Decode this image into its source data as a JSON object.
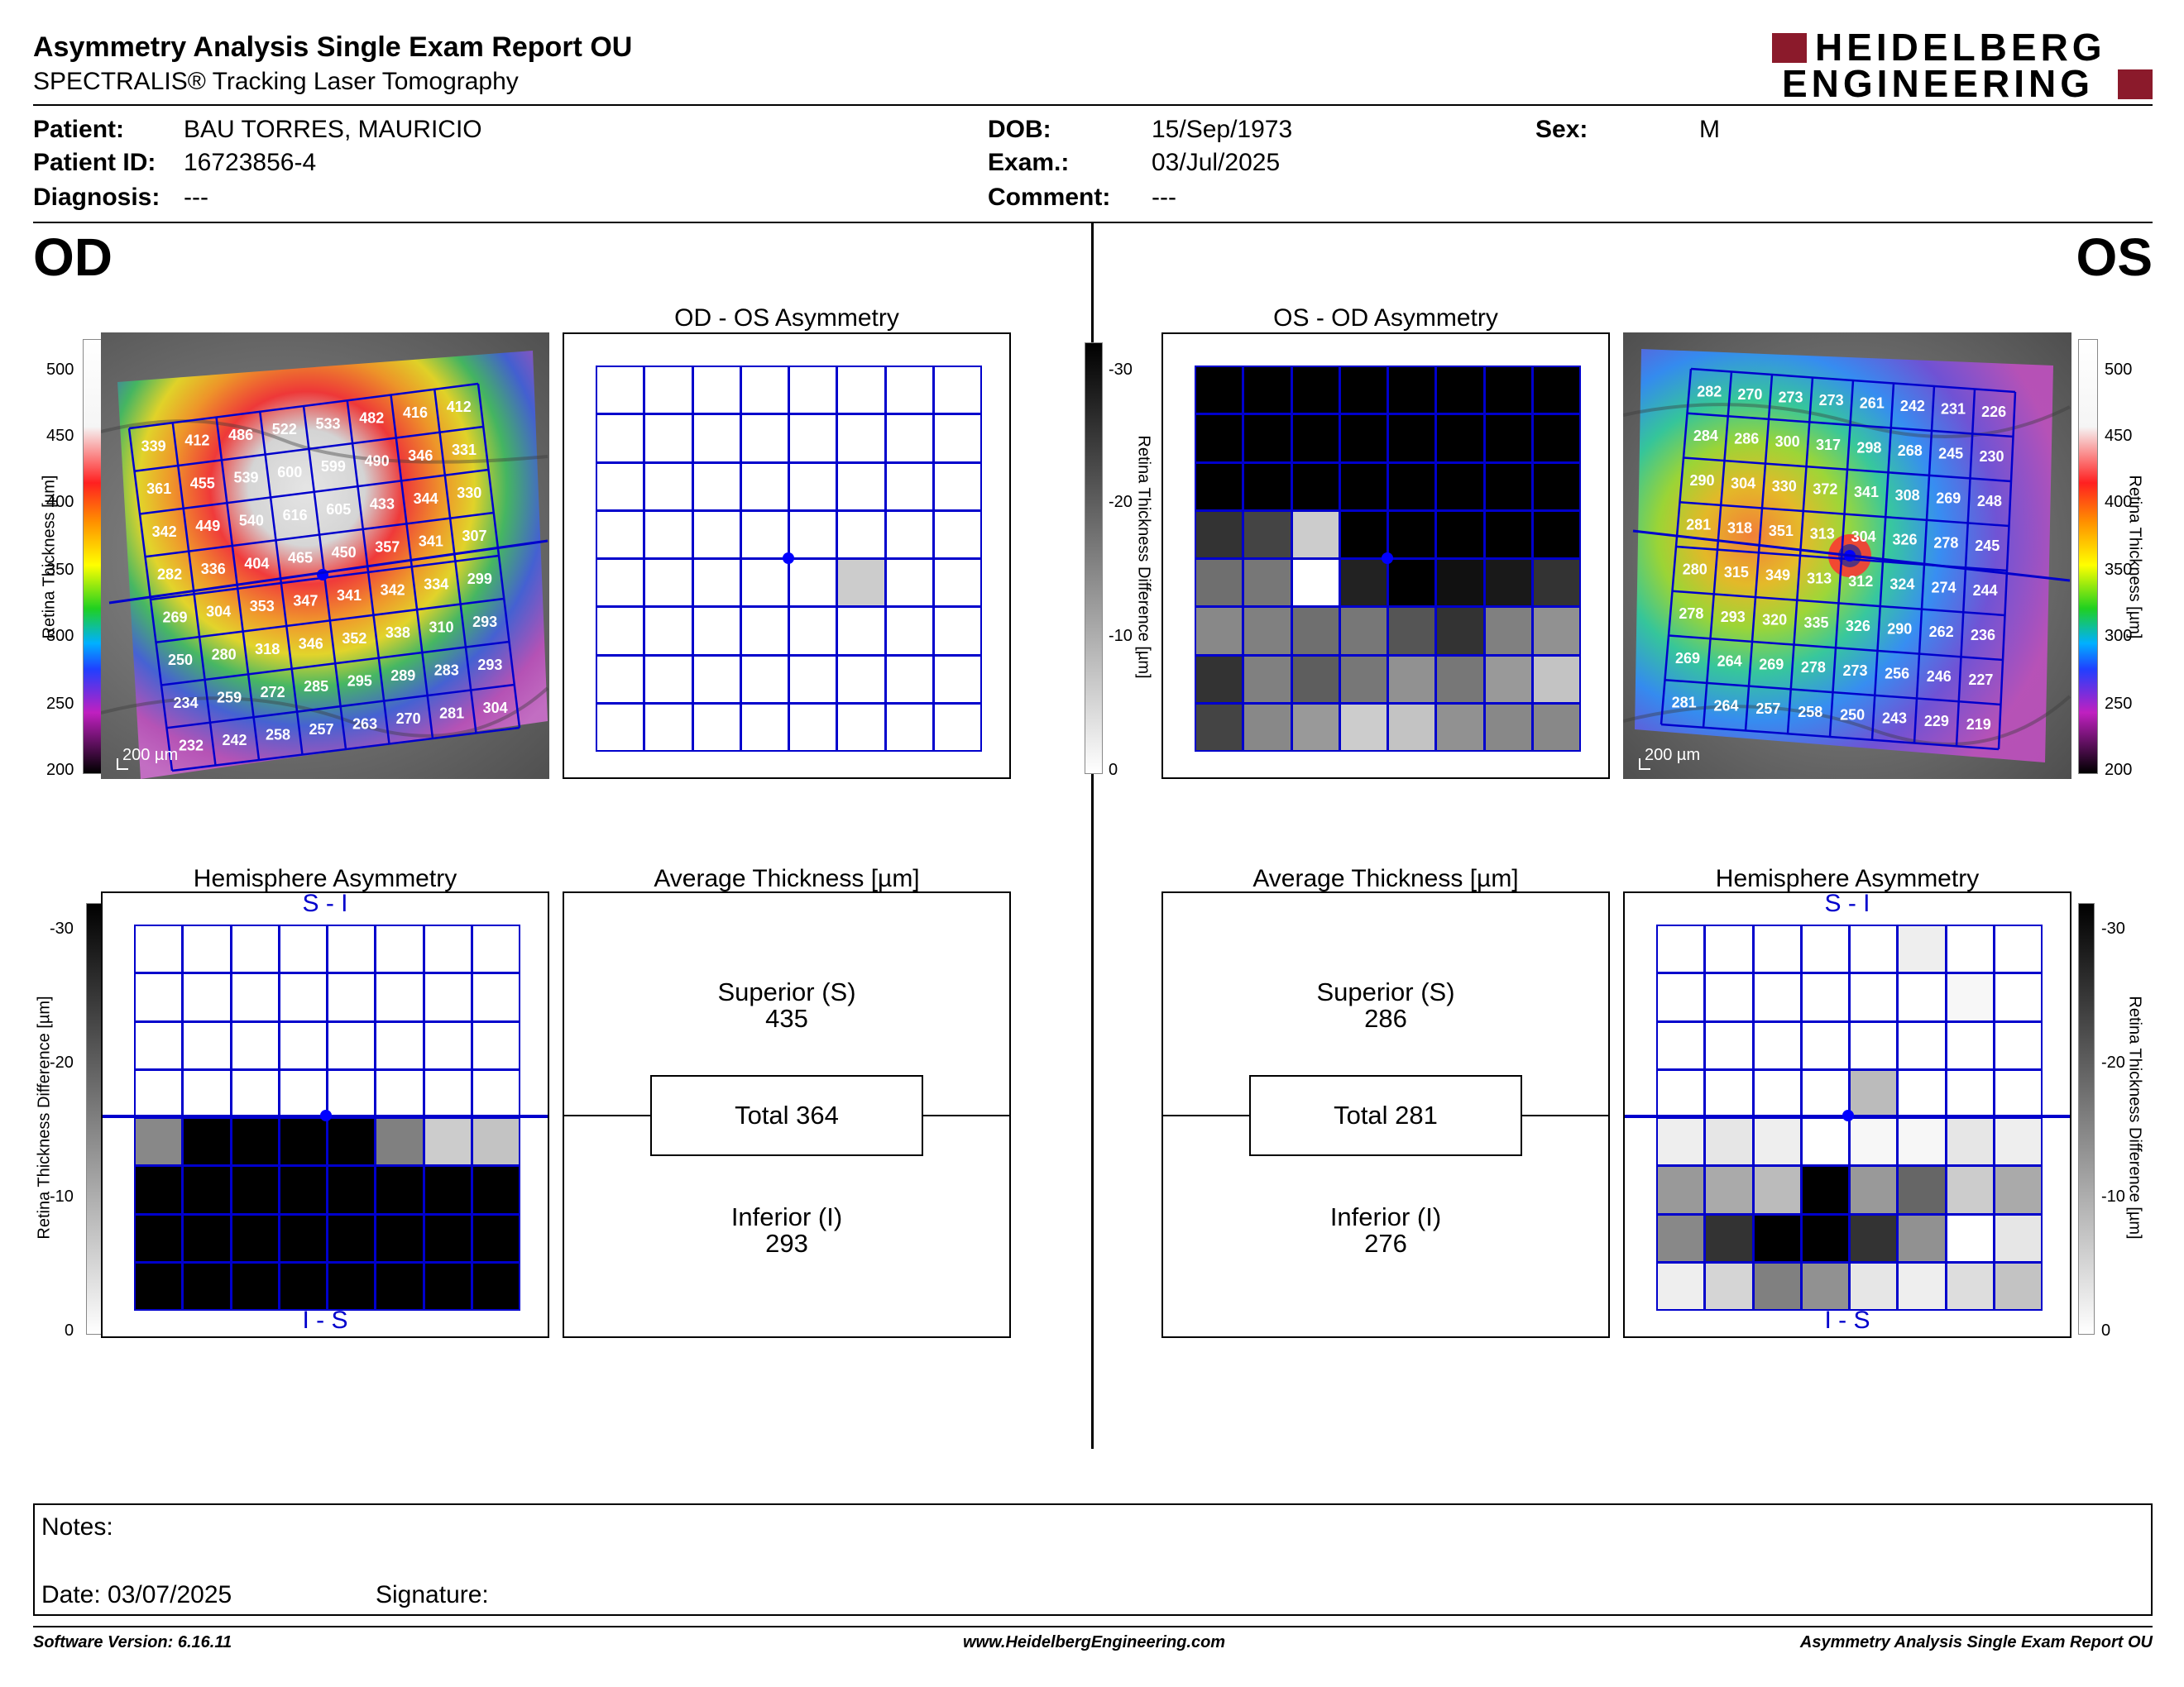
{
  "header": {
    "title": "Asymmetry Analysis Single Exam Report OU",
    "subtitle": "SPECTRALIS® Tracking Laser Tomography",
    "logo_line1": "HEIDELBERG",
    "logo_line2": "ENGINEERING"
  },
  "patient": {
    "patient_label": "Patient:",
    "patient_value": "BAU TORRES, MAURICIO",
    "patient_id_label": "Patient ID:",
    "patient_id_value": "16723856-4",
    "diagnosis_label": "Diagnosis:",
    "diagnosis_value": "---",
    "dob_label": "DOB:",
    "dob_value": "15/Sep/1973",
    "exam_label": "Exam.:",
    "exam_value": "03/Jul/2025",
    "comment_label": "Comment:",
    "comment_value": "---",
    "sex_label": "Sex:",
    "sex_value": "M"
  },
  "eyes": {
    "left": "OD",
    "right": "OS"
  },
  "titles": {
    "od_os_asym": "OD - OS Asymmetry",
    "os_od_asym": "OS - OD Asymmetry",
    "hemi": "Hemisphere Asymmetry",
    "avg": "Average Thickness [µm]",
    "s_i": "S - I",
    "i_s": "I - S"
  },
  "scales": {
    "thickness_ticks": [
      "500",
      "450",
      "400",
      "350",
      "300",
      "250",
      "200"
    ],
    "thickness_label": "Retina Thickness [µm]",
    "diff_ticks": [
      "-30",
      "-20",
      "-10",
      "0"
    ],
    "diff_label": "Retina Thickness Difference [µm]",
    "scale_bar": "200 µm"
  },
  "od": {
    "thickness": [
      [
        339,
        412,
        486,
        522,
        533,
        482,
        416,
        412
      ],
      [
        361,
        455,
        539,
        600,
        599,
        490,
        346,
        331
      ],
      [
        342,
        449,
        540,
        616,
        605,
        433,
        344,
        330
      ],
      [
        282,
        336,
        404,
        465,
        450,
        357,
        341,
        307
      ],
      [
        269,
        304,
        353,
        347,
        341,
        342,
        334,
        299
      ],
      [
        250,
        280,
        318,
        346,
        352,
        338,
        310,
        293
      ],
      [
        234,
        259,
        272,
        285,
        295,
        289,
        283,
        293
      ],
      [
        232,
        242,
        258,
        257,
        263,
        270,
        281,
        304
      ]
    ],
    "asym_diff": [
      [
        0,
        0,
        0,
        0,
        0,
        0,
        0,
        0
      ],
      [
        0,
        0,
        0,
        0,
        0,
        0,
        0,
        0
      ],
      [
        0,
        0,
        0,
        0,
        0,
        0,
        0,
        0
      ],
      [
        0,
        0,
        0,
        0,
        0,
        0,
        0,
        0
      ],
      [
        0,
        0,
        0,
        0,
        0,
        6,
        0,
        0
      ],
      [
        0,
        0,
        0,
        0,
        0,
        0,
        0,
        0
      ],
      [
        0,
        0,
        0,
        0,
        0,
        0,
        0,
        0
      ],
      [
        0,
        0,
        0,
        0,
        0,
        0,
        0,
        0
      ]
    ],
    "hemi_diff": [
      [
        0,
        0,
        0,
        0,
        0,
        0,
        0,
        0
      ],
      [
        0,
        0,
        0,
        0,
        0,
        0,
        0,
        0
      ],
      [
        0,
        0,
        0,
        0,
        0,
        0,
        0,
        0
      ],
      [
        0,
        0,
        0,
        0,
        0,
        0,
        0,
        0
      ],
      [
        14,
        30,
        30,
        30,
        30,
        15,
        6,
        7
      ],
      [
        30,
        30,
        30,
        30,
        30,
        30,
        30,
        30
      ],
      [
        30,
        30,
        30,
        30,
        30,
        30,
        30,
        30
      ],
      [
        30,
        30,
        30,
        30,
        30,
        30,
        30,
        30
      ]
    ],
    "avg": {
      "superior_label": "Superior (S)",
      "superior_value": "435",
      "total_label": "Total 364",
      "inferior_label": "Inferior (I)",
      "inferior_value": "293"
    }
  },
  "os": {
    "thickness": [
      [
        282,
        270,
        273,
        273,
        261,
        242,
        231,
        226
      ],
      [
        284,
        286,
        300,
        317,
        298,
        268,
        245,
        230
      ],
      [
        290,
        304,
        330,
        372,
        341,
        308,
        269,
        248
      ],
      [
        281,
        318,
        351,
        313,
        304,
        326,
        278,
        245
      ],
      [
        280,
        315,
        349,
        313,
        312,
        324,
        274,
        244
      ],
      [
        278,
        293,
        320,
        335,
        326,
        290,
        262,
        236
      ],
      [
        269,
        264,
        269,
        278,
        273,
        256,
        246,
        227
      ],
      [
        281,
        264,
        257,
        258,
        250,
        243,
        229,
        219
      ]
    ],
    "asym_diff": [
      [
        30,
        30,
        30,
        30,
        30,
        30,
        30,
        30
      ],
      [
        30,
        30,
        30,
        30,
        30,
        30,
        30,
        30
      ],
      [
        30,
        30,
        30,
        30,
        30,
        30,
        30,
        30
      ],
      [
        24,
        22,
        6,
        30,
        30,
        30,
        30,
        30
      ],
      [
        17,
        16,
        0,
        26,
        30,
        28,
        27,
        24
      ],
      [
        14,
        15,
        17,
        16,
        20,
        24,
        15,
        13
      ],
      [
        24,
        15,
        19,
        16,
        13,
        16,
        12,
        7
      ],
      [
        22,
        14,
        12,
        6,
        7,
        13,
        14,
        14
      ]
    ],
    "hemi_diff": [
      [
        0,
        0,
        0,
        0,
        0,
        2,
        0,
        0
      ],
      [
        0,
        0,
        0,
        0,
        0,
        0,
        1,
        0
      ],
      [
        0,
        0,
        0,
        0,
        0,
        0,
        0,
        0
      ],
      [
        0,
        0,
        0,
        0,
        8,
        0,
        0,
        0
      ],
      [
        2,
        3,
        2,
        0,
        1,
        1,
        3,
        2
      ],
      [
        12,
        10,
        8,
        30,
        12,
        18,
        6,
        10
      ],
      [
        14,
        24,
        30,
        30,
        24,
        13,
        0,
        3
      ],
      [
        2,
        5,
        15,
        13,
        3,
        2,
        4,
        7
      ]
    ],
    "avg": {
      "superior_label": "Superior (S)",
      "superior_value": "286",
      "total_label": "Total 281",
      "inferior_label": "Inferior (I)",
      "inferior_value": "276"
    }
  },
  "notes": {
    "notes_label": "Notes:",
    "date_label": "Date: 03/07/2025",
    "signature_label": "Signature:"
  },
  "footer": {
    "software": "Software Version: 6.16.11",
    "website": "www.HeidelbergEngineering.com",
    "report": "Asymmetry Analysis Single Exam Report OU"
  }
}
